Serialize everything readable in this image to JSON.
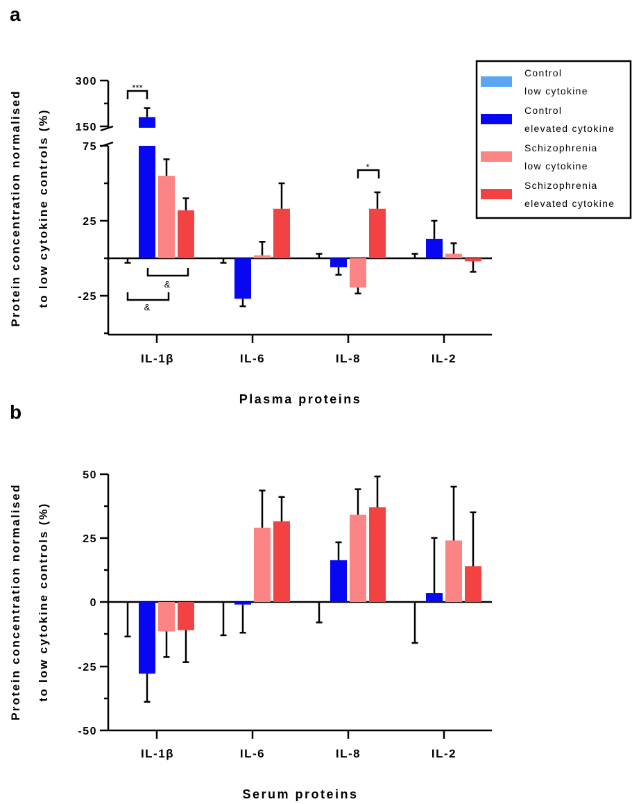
{
  "panels": [
    {
      "letter": "a",
      "ylabel_lines": [
        "Protein concentration normalised",
        "to low cytokine controls (%)"
      ],
      "xlabel": "Plasma proteins",
      "yticks_upper": [
        "300",
        "150"
      ],
      "yticks_lower": [
        "75",
        "25",
        "-25"
      ],
      "categories": [
        "IL-1β",
        "IL-6",
        "IL-8",
        "IL-2"
      ],
      "significance": [
        {
          "label": "***"
        },
        {
          "label": "*"
        },
        {
          "label": "&"
        },
        {
          "label": "&"
        }
      ]
    },
    {
      "letter": "b",
      "ylabel_lines": [
        "Protein concentration normalised",
        "to low cytokine controls (%)"
      ],
      "xlabel": "Serum proteins",
      "yticks": [
        "50",
        "25",
        "0",
        "-25",
        "-50"
      ],
      "categories": [
        "IL-1β",
        "IL-6",
        "IL-8",
        "IL-2"
      ]
    }
  ],
  "legend": [
    {
      "line1": "Control",
      "line2": "low cytokine",
      "color": "#5aa6f4"
    },
    {
      "line1": "Control",
      "line2": "elevated cytokine",
      "color": "#0707f2"
    },
    {
      "line1": "Schizophrenia",
      "line2": "low cytokine",
      "color": "#fb8585"
    },
    {
      "line1": "Schizophrenia",
      "line2": "elevated cytokine",
      "color": "#f24242"
    }
  ],
  "chart_data": [
    {
      "type": "bar",
      "panel": "a",
      "categories": [
        "IL-1β",
        "IL-6",
        "IL-8",
        "IL-2"
      ],
      "xlabel": "Plasma proteins",
      "ylabel": "Protein concentration normalised to low cytokine controls (%)",
      "y_axis_break": {
        "lower_range": [
          -35,
          75
        ],
        "upper_range": [
          150,
          300
        ]
      },
      "series": [
        {
          "name": "Control low cytokine",
          "values": [
            0,
            0,
            0,
            0
          ],
          "error": [
            3,
            3,
            3,
            3
          ],
          "error_direction": [
            -1,
            -1,
            1,
            1
          ]
        },
        {
          "name": "Control elevated cytokine",
          "values": [
            180,
            -27,
            -6,
            13
          ],
          "error": [
            30,
            5,
            5,
            12
          ]
        },
        {
          "name": "Schizophrenia low cytokine",
          "values": [
            55,
            2,
            -19.5,
            3
          ],
          "error": [
            11,
            9,
            4,
            7
          ]
        },
        {
          "name": "Schizophrenia elevated cytokine",
          "values": [
            32,
            33,
            33,
            -2
          ],
          "error": [
            8,
            17,
            11,
            7
          ]
        }
      ],
      "ylim": [
        -35,
        300
      ]
    },
    {
      "type": "bar",
      "panel": "b",
      "categories": [
        "IL-1β",
        "IL-6",
        "IL-8",
        "IL-2"
      ],
      "xlabel": "Serum proteins",
      "ylabel": "Protein concentration normalised to low cytokine controls (%)",
      "series": [
        {
          "name": "Control low cytokine",
          "values": [
            0,
            0,
            0,
            0
          ],
          "error": [
            13.5,
            13,
            8,
            16
          ],
          "error_direction": [
            -1,
            -1,
            -1,
            -1
          ]
        },
        {
          "name": "Control elevated cytokine",
          "values": [
            -28,
            -1,
            16.3,
            3.5
          ],
          "error": [
            11,
            11,
            7,
            21.5
          ]
        },
        {
          "name": "Schizophrenia low cytokine",
          "values": [
            -11.5,
            29,
            34,
            24
          ],
          "error": [
            10,
            14.5,
            10,
            21
          ]
        },
        {
          "name": "Schizophrenia elevated cytokine",
          "values": [
            -11,
            31.5,
            37,
            14
          ],
          "error": [
            12.5,
            9.5,
            12,
            21
          ]
        }
      ],
      "ylim": [
        -50,
        50
      ]
    }
  ]
}
